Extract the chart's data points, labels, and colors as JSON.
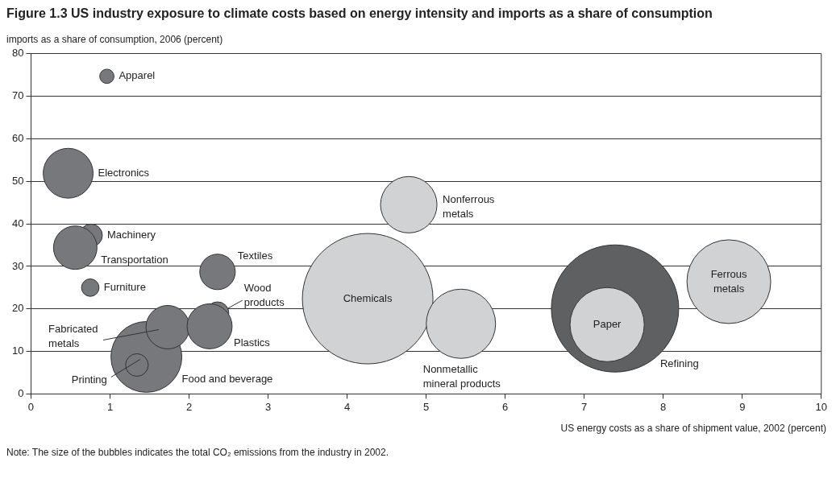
{
  "chart_data": {
    "type": "bubble",
    "title": "Figure 1.3   US industry exposure to climate costs based on energy intensity and imports as a share of consumption",
    "ylabel": "imports as a share of consumption, 2006 (percent)",
    "xlabel": "US energy costs as a share of shipment value, 2002 (percent)",
    "annotations": [
      "Note: The size of the bubbles indicates the total CO₂ emissions from the industry in 2002."
    ],
    "xlim": [
      0,
      10
    ],
    "xticks": [
      0,
      1,
      2,
      3,
      4,
      5,
      6,
      7,
      8,
      9,
      10
    ],
    "ylim": [
      0,
      80
    ],
    "yticks": [
      0,
      10,
      20,
      30,
      40,
      50,
      60,
      70,
      80
    ],
    "grid": "y",
    "legend": false,
    "series": [
      {
        "name": "Apparel",
        "color": "#77787b",
        "x": [
          0.96
        ],
        "values": [
          74.7
        ],
        "sizes": [
          0.012
        ]
      },
      {
        "name": "Electronics",
        "color": "#77787b",
        "x": [
          0.47
        ],
        "values": [
          51.9
        ],
        "sizes": [
          0.146
        ]
      },
      {
        "name": "Machinery",
        "color": "#77787b",
        "x": [
          0.76
        ],
        "values": [
          37.3
        ],
        "sizes": [
          0.03
        ]
      },
      {
        "name": "Transportation",
        "color": "#77787b",
        "x": [
          0.56
        ],
        "values": [
          34.4
        ],
        "sizes": [
          0.111
        ]
      },
      {
        "name": "Furniture",
        "color": "#77787b",
        "x": [
          0.75
        ],
        "values": [
          25
        ],
        "sizes": [
          0.018
        ]
      },
      {
        "name": "Textiles",
        "color": "#77787b",
        "x": [
          2.36
        ],
        "values": [
          28.7
        ],
        "sizes": [
          0.074
        ]
      },
      {
        "name": "Wood products",
        "color": "#77787b",
        "x": [
          2.36
        ],
        "values": [
          19
        ],
        "sizes": [
          0.03
        ]
      },
      {
        "name": "Food and beverage",
        "color": "#77787b",
        "x": [
          1.46
        ],
        "values": [
          8.7
        ],
        "sizes": [
          0.295
        ]
      },
      {
        "name": "Fabricated metals",
        "color": "#77787b",
        "x": [
          1.73
        ],
        "values": [
          15.7
        ],
        "sizes": [
          0.111
        ]
      },
      {
        "name": "Plastics",
        "color": "#77787b",
        "x": [
          2.26
        ],
        "values": [
          15.9
        ],
        "sizes": [
          0.119
        ]
      },
      {
        "name": "Printing",
        "color": "#77787b",
        "x": [
          1.34
        ],
        "values": [
          6.8
        ],
        "sizes": [
          0.03
        ]
      },
      {
        "name": "Chemicals",
        "color": "#d1d2d4",
        "x": [
          4.26
        ],
        "values": [
          22.4
        ],
        "sizes": [
          1
        ]
      },
      {
        "name": "Nonferrous metals",
        "color": "#d1d2d4",
        "x": [
          4.78
        ],
        "values": [
          44.5
        ],
        "sizes": [
          0.187
        ]
      },
      {
        "name": "Nonmetallic mineral products",
        "color": "#d1d2d4",
        "x": [
          5.44
        ],
        "values": [
          16.5
        ],
        "sizes": [
          0.282
        ]
      },
      {
        "name": "Refining",
        "color": "#5f6062",
        "x": [
          7.39
        ],
        "values": [
          20.1
        ],
        "sizes": [
          0.951
        ]
      },
      {
        "name": "Paper",
        "color": "#d1d2d4",
        "x": [
          7.29
        ],
        "values": [
          16.3
        ],
        "sizes": [
          0.323
        ]
      },
      {
        "name": "Ferrous metals",
        "color": "#d1d2d4",
        "x": [
          8.83
        ],
        "values": [
          26.4
        ],
        "sizes": [
          0.412
        ]
      }
    ]
  }
}
